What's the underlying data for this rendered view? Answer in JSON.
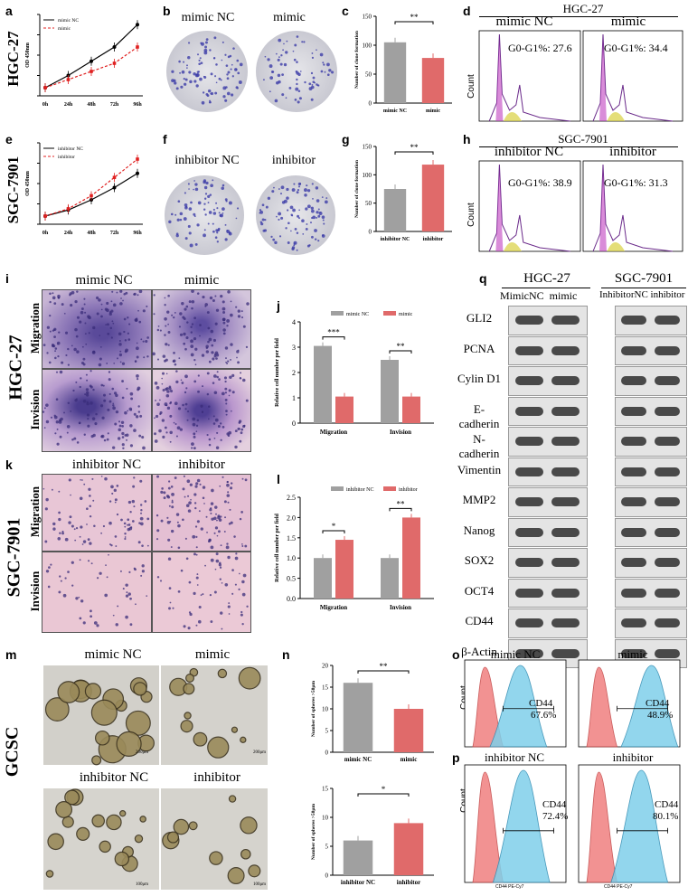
{
  "panel_letters": {
    "a": "a",
    "b": "b",
    "c": "c",
    "d": "d",
    "e": "e",
    "f": "f",
    "g": "g",
    "h": "h",
    "i": "i",
    "j": "j",
    "k": "k",
    "l": "l",
    "m": "m",
    "n": "n",
    "o": "o",
    "p": "p",
    "q": "q"
  },
  "row_labels": {
    "hgc27_top": "HGC-27",
    "sgc7901_top": "SGC-7901",
    "hgc27_mid": "HGC-27",
    "sgc7901_mid": "SGC-7901",
    "gcsc": "GCSC"
  },
  "colony": {
    "b_left": "mimic NC",
    "b_right": "mimic",
    "f_left": "inhibitor NC",
    "f_right": "inhibitor"
  },
  "flow_cycle": {
    "d_title": "HGC-27",
    "d_left": "mimic NC",
    "d_right": "mimic",
    "d_left_val": "G0-G1%: 27.6",
    "d_right_val": "G0-G1%: 34.4",
    "h_title": "SGC-7901",
    "h_left": "inhibitor NC",
    "h_right": "inhibitor",
    "h_left_val": "G0-G1%: 38.9",
    "h_right_val": "G0-G1%: 31.3",
    "ylabel": "Count"
  },
  "transwell": {
    "i_left": "mimic NC",
    "i_right": "mimic",
    "k_left": "inhibitor NC",
    "k_right": "inhibitor",
    "migration": "Migration",
    "invision": "Invision"
  },
  "spheres": {
    "m_tl": "mimic NC",
    "m_tr": "mimic",
    "m_bl": "inhibitor NC",
    "m_br": "inhibitor",
    "scale1": "200μm",
    "scale2": "200μm",
    "scale3": "100μm",
    "scale4": "100μm"
  },
  "western": {
    "title_left": "HGC-27",
    "title_right": "SGC-7901",
    "lanes_left": "MimicNC  mimic",
    "lanes_right": "InhibitorNC inhibitor",
    "proteins": [
      "GLI2",
      "PCNA",
      "Cylin D1",
      "E-cadherin",
      "N-cadherin",
      "Vimentin",
      "MMP2",
      "Nanog",
      "SOX2",
      "OCT4",
      "CD44",
      "β-Actin"
    ]
  },
  "flow_cd44": {
    "o_left": "mimic NC",
    "o_right": "mimic",
    "p_left": "inhibitor NC",
    "p_right": "inhibitor",
    "ylabel": "Count",
    "xlabel": "CD44 PE-Cy7",
    "marker": "CD44",
    "o_left_val": "67.6%",
    "o_right_val": "48.9%",
    "p_left_val": "72.4%",
    "p_right_val": "80.1%"
  },
  "chart_data": [
    {
      "id": "a",
      "type": "line",
      "x": [
        "0h",
        "24h",
        "48h",
        "72h",
        "96h"
      ],
      "ylabel": "OD 450nm",
      "legend": "top-left",
      "series": [
        {
          "name": "mimic NC",
          "values": [
            0.2,
            0.5,
            0.85,
            1.2,
            1.75
          ],
          "color": "#000000"
        },
        {
          "name": "mimic",
          "values": [
            0.2,
            0.4,
            0.6,
            0.8,
            1.2
          ],
          "color": "#e02020"
        }
      ]
    },
    {
      "id": "e",
      "type": "line",
      "x": [
        "0h",
        "24h",
        "48h",
        "72h",
        "96h"
      ],
      "ylabel": "OD 450nm",
      "legend": "top-left",
      "series": [
        {
          "name": "inhibitor NC",
          "values": [
            0.2,
            0.35,
            0.6,
            0.9,
            1.25
          ],
          "color": "#000000"
        },
        {
          "name": "inhibitor",
          "values": [
            0.2,
            0.38,
            0.7,
            1.15,
            1.6
          ],
          "color": "#e02020"
        }
      ]
    },
    {
      "id": "c",
      "type": "bar",
      "categories": [
        "mimic NC",
        "mimic"
      ],
      "values": [
        105,
        78
      ],
      "ylim": [
        0,
        150
      ],
      "yticks": [
        0,
        50,
        100,
        150
      ],
      "ylabel": "Number of clone formation",
      "sig": "**"
    },
    {
      "id": "g",
      "type": "bar",
      "categories": [
        "inhibitor NC",
        "inhibitor"
      ],
      "values": [
        75,
        118
      ],
      "ylim": [
        0,
        150
      ],
      "yticks": [
        0,
        50,
        100,
        150
      ],
      "ylabel": "Number of clone formation",
      "sig": "**"
    },
    {
      "id": "j",
      "type": "bar",
      "categories": [
        "Migration",
        "Invision"
      ],
      "ylim": [
        0,
        4
      ],
      "yticks": [
        0,
        1,
        2,
        3,
        4
      ],
      "ylabel": "Relative cell number per field",
      "legend": "top",
      "series": [
        {
          "name": "mimic NC",
          "values": [
            3.05,
            2.5
          ],
          "color": "#a0a0a0"
        },
        {
          "name": "mimic",
          "values": [
            1.05,
            1.05
          ],
          "color": "#e06a6a"
        }
      ],
      "sig": [
        "***",
        "**"
      ]
    },
    {
      "id": "l",
      "type": "bar",
      "categories": [
        "Migration",
        "Invision"
      ],
      "ylim": [
        0,
        2.5
      ],
      "yticks": [
        0.0,
        0.5,
        1.0,
        1.5,
        2.0,
        2.5
      ],
      "ylabel": "Relative cell number per field",
      "legend": "top",
      "series": [
        {
          "name": "inhibitor NC",
          "values": [
            1.0,
            1.0
          ],
          "color": "#a0a0a0"
        },
        {
          "name": "inhibitor",
          "values": [
            1.45,
            2.0
          ],
          "color": "#e06a6a"
        }
      ],
      "sig": [
        "*",
        "**"
      ]
    },
    {
      "id": "n1",
      "type": "bar",
      "categories": [
        "mimic NC",
        "mimic"
      ],
      "values": [
        16,
        10
      ],
      "ylim": [
        0,
        20
      ],
      "yticks": [
        0,
        5,
        10,
        15,
        20
      ],
      "ylabel": "Number of spheres >50μm",
      "sig": "**"
    },
    {
      "id": "n2",
      "type": "bar",
      "categories": [
        "inhibitor NC",
        "inhibitor"
      ],
      "values": [
        6,
        9
      ],
      "ylim": [
        0,
        15
      ],
      "yticks": [
        0,
        5,
        10,
        15
      ],
      "ylabel": "Number of spheres >50μm",
      "sig": "*"
    }
  ]
}
